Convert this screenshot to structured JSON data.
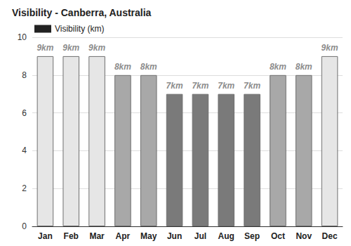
{
  "chart_data": {
    "type": "bar",
    "title": "Visibility - Canberra, Australia",
    "categories": [
      "Jan",
      "Feb",
      "Mar",
      "Apr",
      "May",
      "Jun",
      "Jul",
      "Aug",
      "Sep",
      "Oct",
      "Nov",
      "Dec"
    ],
    "series": [
      {
        "name": "Visibility (km)",
        "color": "#222222",
        "colors": [
          "#e6e6e6",
          "#e6e6e6",
          "#e6e6e6",
          "#a8a8a8",
          "#a8a8a8",
          "#7a7a7a",
          "#7a7a7a",
          "#7a7a7a",
          "#7a7a7a",
          "#a8a8a8",
          "#a8a8a8",
          "#e6e6e6"
        ],
        "values": [
          9,
          9,
          9,
          8,
          8,
          7,
          7,
          7,
          7,
          8,
          8,
          9
        ],
        "value_labels": [
          "9km",
          "9km",
          "9km",
          "8km",
          "8km",
          "7km",
          "7km",
          "7km",
          "7km",
          "8km",
          "8km",
          "9km"
        ]
      }
    ],
    "ylim": [
      0,
      10
    ],
    "yticks": [
      0,
      2,
      4,
      6,
      8,
      10
    ],
    "grid": true,
    "data_labels": true,
    "legend": "top-left"
  }
}
